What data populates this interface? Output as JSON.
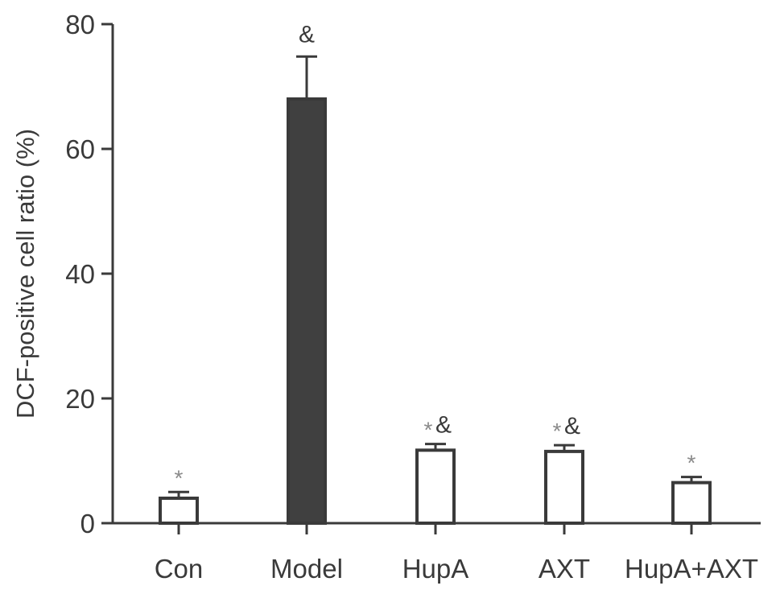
{
  "chart_data": {
    "type": "bar",
    "ylabel": "DCF-positive cell ratio (%)",
    "xlabel": "",
    "ylim": [
      0,
      80
    ],
    "yticks": [
      0,
      20,
      40,
      60,
      80
    ],
    "grid": false,
    "categories": [
      "Con",
      "Model",
      "HupA",
      "AXT",
      "HupA+AXT"
    ],
    "values": [
      4,
      68,
      11.7,
      11.5,
      6.5
    ],
    "errors": [
      1,
      6.8,
      1,
      1,
      0.9
    ],
    "bar_fills": [
      "#ffffff",
      "#404040",
      "#ffffff",
      "#ffffff",
      "#ffffff"
    ],
    "annotations": [
      {
        "star": "*",
        "amp": ""
      },
      {
        "star": "",
        "amp": "&"
      },
      {
        "star": "*",
        "amp": "&"
      },
      {
        "star": "*",
        "amp": "&"
      },
      {
        "star": "*",
        "amp": ""
      }
    ]
  },
  "colors": {
    "axis": "#3a3a3a",
    "bar_stroke": "#3a3a3a",
    "model_bar": "#404040",
    "star": "#8a8a8a"
  }
}
